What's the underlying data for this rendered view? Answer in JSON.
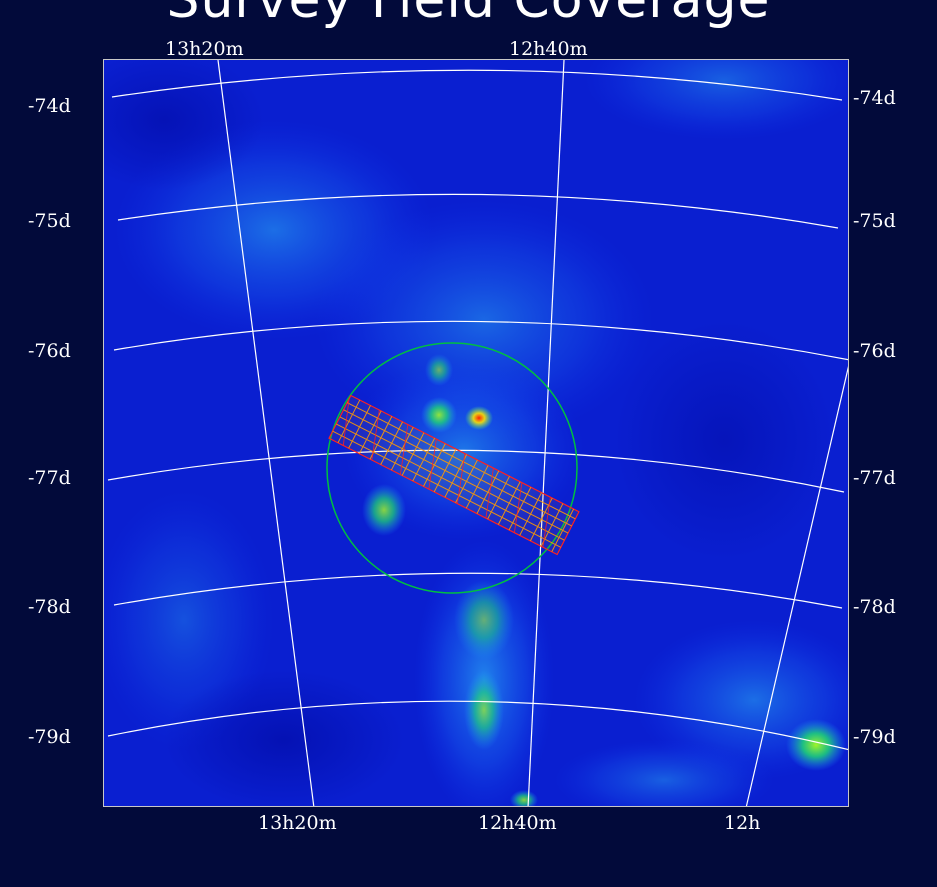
{
  "title": "Survey Field Coverage",
  "colors": {
    "background": "#020a3a",
    "sky_base": "#0a1fd0",
    "grid": "#ffffff",
    "fov_circle": "#00c040",
    "footprint_outline": "#ff2020",
    "footprint_mesh": "#ff9a00"
  },
  "axes": {
    "ra_top": [
      "13h20m",
      "12h40m"
    ],
    "ra_bottom": [
      "13h20m",
      "12h40m",
      "12h"
    ],
    "dec_left": [
      "-74d",
      "-75d",
      "-76d",
      "-77d",
      "-78d",
      "-79d"
    ],
    "dec_right": [
      "-74d",
      "-75d",
      "-76d",
      "-77d",
      "-78d",
      "-79d"
    ]
  }
}
